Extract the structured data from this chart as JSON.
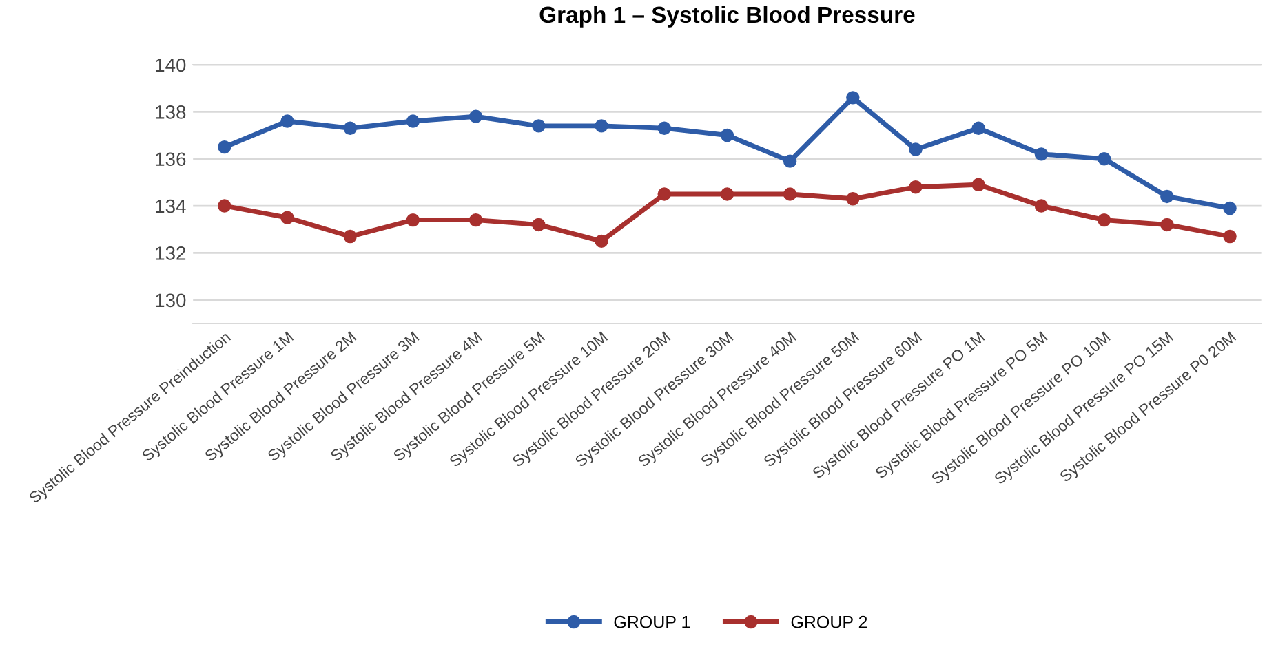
{
  "chart_data": {
    "type": "line",
    "title": "Graph 1 – Systolic Blood Pressure",
    "categories": [
      "Systolic Blood Pressure Preinduction",
      "Systolic Blood Pressure 1M",
      "Systolic Blood Pressure 2M",
      "Systolic Blood Pressure 3M",
      "Systolic Blood Pressure 4M",
      "Systolic Blood Pressure 5M",
      "Systolic Blood Pressure 10M",
      "Systolic Blood Pressure 20M",
      "Systolic Blood Pressure 30M",
      "Systolic Blood Pressure 40M",
      "Systolic Blood Pressure 50M",
      "Systolic Blood Pressure 60M",
      "Systolic Blood Pressure PO 1M",
      "Systolic Blood Pressure PO 5M",
      "Systolic Blood Pressure PO 10M",
      "Systolic Blood Pressure PO 15M",
      "Systolic Blood Pressure P0 20M"
    ],
    "series": [
      {
        "name": "GROUP 1",
        "color": "#2e5ca8",
        "values": [
          136.5,
          137.6,
          137.3,
          137.6,
          137.8,
          137.4,
          137.4,
          137.3,
          137.0,
          135.9,
          138.6,
          136.4,
          137.3,
          136.2,
          136.0,
          134.4,
          133.9
        ]
      },
      {
        "name": "GROUP 2",
        "color": "#a8302e",
        "values": [
          134.0,
          133.5,
          132.7,
          133.4,
          133.4,
          133.2,
          132.5,
          134.5,
          134.5,
          134.5,
          134.3,
          134.8,
          134.9,
          134.0,
          133.4,
          133.2,
          132.7
        ]
      }
    ],
    "ylim": [
      129,
      140
    ],
    "yticks": [
      130,
      132,
      134,
      136,
      138,
      140
    ],
    "grid": "y",
    "legend": "bottom",
    "marker": "circle",
    "line_style": "solid"
  }
}
